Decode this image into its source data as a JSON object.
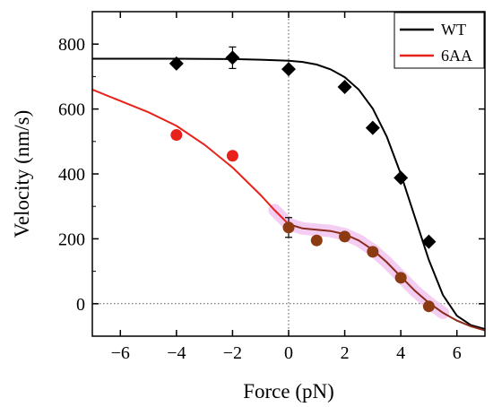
{
  "chart_data": {
    "type": "scatter",
    "xlabel": "Force (pN)",
    "ylabel": "Velocity (nm/s)",
    "xlim": [
      -7,
      7
    ],
    "ylim": [
      -100,
      900
    ],
    "xticks": [
      -6,
      -4,
      -2,
      0,
      2,
      4,
      6
    ],
    "yticks": [
      0,
      200,
      400,
      600,
      800
    ],
    "reference_lines": {
      "x": 0,
      "y": 0,
      "style": "dotted"
    },
    "legend_placement": "top-right",
    "series": [
      {
        "name": "WT",
        "color": "#000000",
        "marker": "diamond",
        "points": [
          {
            "x": -4,
            "y": 740
          },
          {
            "x": -2,
            "y": 758
          },
          {
            "x": 0,
            "y": 723
          },
          {
            "x": 2,
            "y": 668
          },
          {
            "x": 3,
            "y": 542
          },
          {
            "x": 4,
            "y": 388
          },
          {
            "x": 5,
            "y": 191
          }
        ],
        "fit": [
          {
            "x": -7,
            "y": 755
          },
          {
            "x": -4,
            "y": 755
          },
          {
            "x": -2,
            "y": 754
          },
          {
            "x": -1,
            "y": 752
          },
          {
            "x": 0,
            "y": 749
          },
          {
            "x": 0.5,
            "y": 745
          },
          {
            "x": 1,
            "y": 737
          },
          {
            "x": 1.5,
            "y": 722
          },
          {
            "x": 2,
            "y": 698
          },
          {
            "x": 2.5,
            "y": 660
          },
          {
            "x": 3,
            "y": 601
          },
          {
            "x": 3.5,
            "y": 515
          },
          {
            "x": 4,
            "y": 400
          },
          {
            "x": 4.5,
            "y": 267
          },
          {
            "x": 5,
            "y": 135
          },
          {
            "x": 5.5,
            "y": 27
          },
          {
            "x": 6,
            "y": -37
          },
          {
            "x": 6.5,
            "y": -66
          },
          {
            "x": 7,
            "y": -78
          }
        ]
      },
      {
        "name": "6AA",
        "color": "#e8221a",
        "marker": "circle",
        "points": [
          {
            "x": -4,
            "y": 520
          },
          {
            "x": -2,
            "y": 456
          },
          {
            "x": 0,
            "y": 235
          },
          {
            "x": 1,
            "y": 195
          },
          {
            "x": 2,
            "y": 207
          },
          {
            "x": 3,
            "y": 160
          },
          {
            "x": 4,
            "y": 80
          },
          {
            "x": 5,
            "y": -8
          }
        ],
        "fit": [
          {
            "x": -7,
            "y": 660
          },
          {
            "x": -6,
            "y": 625
          },
          {
            "x": -5,
            "y": 590
          },
          {
            "x": -4,
            "y": 548
          },
          {
            "x": -3,
            "y": 490
          },
          {
            "x": -2,
            "y": 420
          },
          {
            "x": -1,
            "y": 335
          },
          {
            "x": -0.5,
            "y": 288
          },
          {
            "x": 0,
            "y": 245
          },
          {
            "x": 0.5,
            "y": 232
          },
          {
            "x": 1,
            "y": 228
          },
          {
            "x": 1.5,
            "y": 224
          },
          {
            "x": 2,
            "y": 214
          },
          {
            "x": 2.5,
            "y": 195
          },
          {
            "x": 3,
            "y": 166
          },
          {
            "x": 3.5,
            "y": 128
          },
          {
            "x": 4,
            "y": 84
          },
          {
            "x": 4.5,
            "y": 40
          },
          {
            "x": 5,
            "y": 3
          },
          {
            "x": 5.5,
            "y": -28
          },
          {
            "x": 6,
            "y": -52
          },
          {
            "x": 6.5,
            "y": -70
          },
          {
            "x": 7,
            "y": -82
          }
        ]
      }
    ]
  }
}
